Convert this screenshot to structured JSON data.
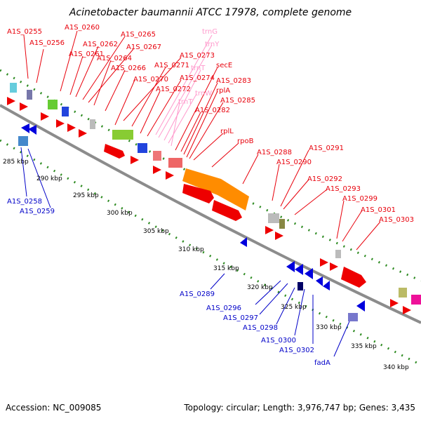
{
  "title": "Acinetobacter baumannii ATCC 17978, complete genome",
  "footer": {
    "accession": "Accession: NC_009085",
    "summary": "Topology: circular; Length: 3,976,747 bp; Genes: 3,435"
  },
  "colors": {
    "forward_label": "#e8000b",
    "reverse_label": "#0000c8",
    "trna_label": "#ff99cc",
    "backbone": "#8c8c8c",
    "tick_dot": "#2e8b22"
  },
  "ticks": [
    "285 kbp",
    "290 kbp",
    "295 kbp",
    "300 kbp",
    "305 kbp",
    "310 kbp",
    "315 kbp",
    "320 kbp",
    "325 kbp",
    "330 kbp",
    "335 kbp",
    "340 kbp"
  ],
  "forward_labels": [
    "A1S_0255",
    "A1S_0256",
    "A1S_0260",
    "A1S_0261",
    "A1S_0262",
    "A1S_0265",
    "A1S_0267",
    "A1S_0264",
    "A1S_0266",
    "A1S_0273",
    "A1S_0271",
    "A1S_0270",
    "A1S_0274",
    "A1S_0272",
    "secE",
    "A1S_0283",
    "rplA",
    "A1S_0285",
    "A1S_0282",
    "rplL",
    "rpoB",
    "A1S_0288",
    "A1S_0290",
    "A1S_0291",
    "A1S_0292",
    "A1S_0293",
    "A1S_0299",
    "A1S_0301",
    "A1S_0303"
  ],
  "trna_labels": [
    "trnG",
    "trnY",
    "trnT",
    "trnW",
    "trnT"
  ],
  "reverse_labels": [
    "A1S_0258",
    "A1S_0259",
    "A1S_0289",
    "A1S_0296",
    "A1S_0297",
    "A1S_0298",
    "A1S_0300",
    "A1S_0302",
    "fadA"
  ]
}
